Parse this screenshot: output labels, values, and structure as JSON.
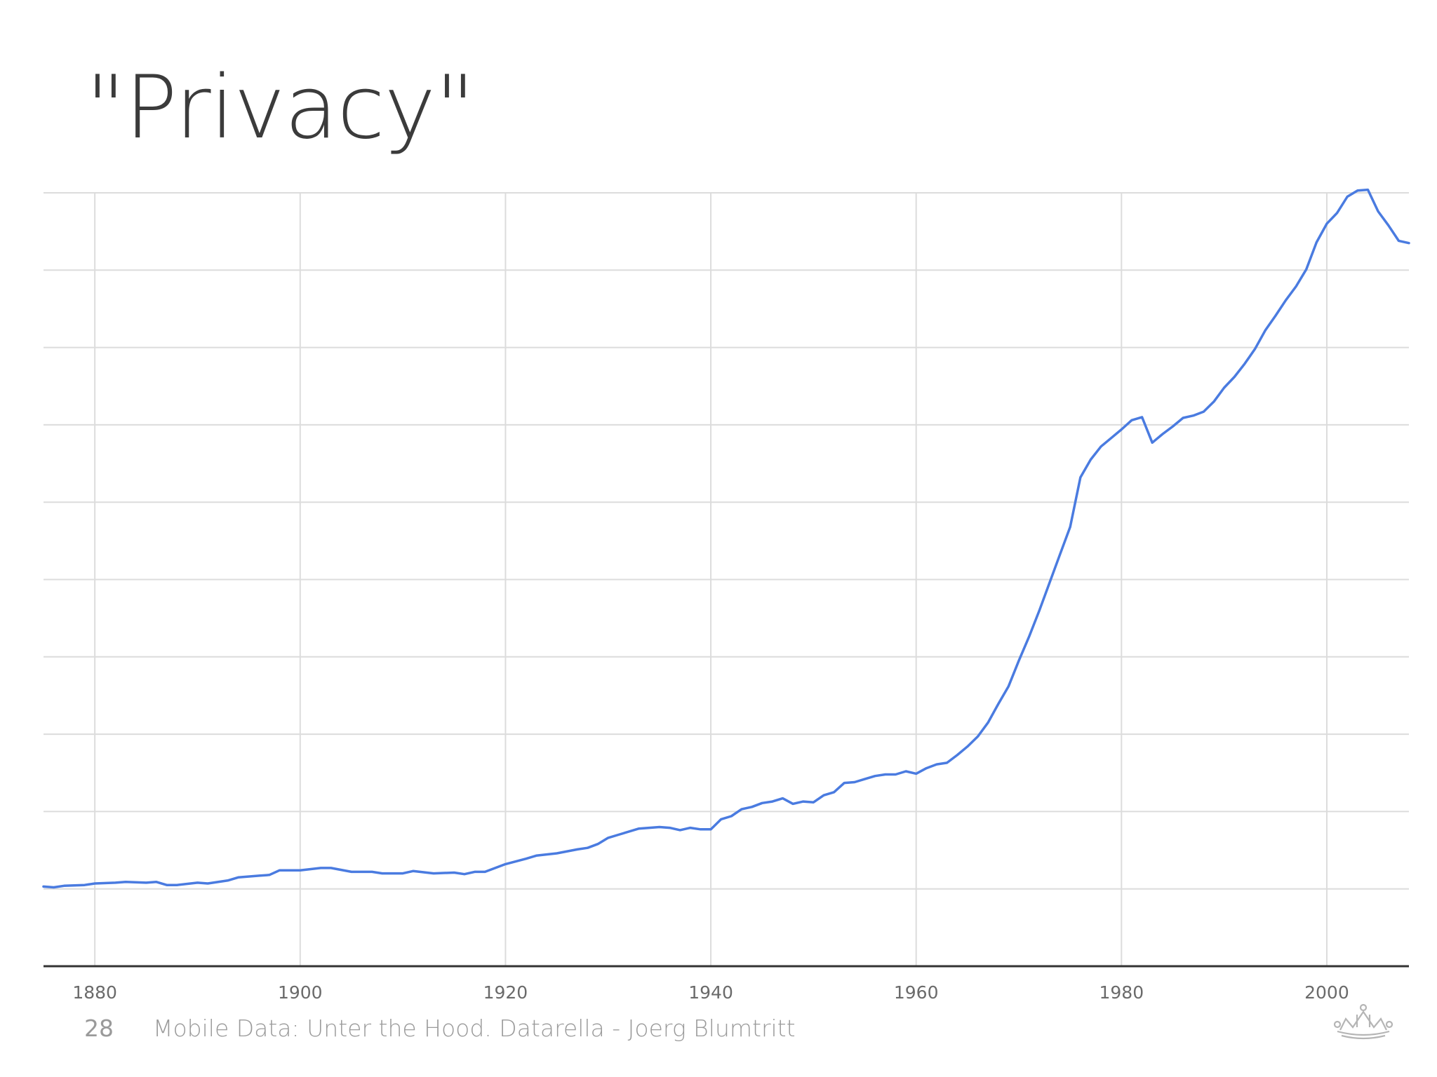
{
  "slide": {
    "title": "\"Privacy\"",
    "page_number": "28",
    "footer_text": "Mobile Data: Unter the Hood. Datarella - Joerg Blumtritt",
    "logo_icon": "crown-logo-icon"
  },
  "colors": {
    "line": "#4a7be0",
    "grid": "#dcdcdc",
    "axis": "#333333",
    "title": "#3b3b3b",
    "footer": "#9a9a9a"
  },
  "chart_data": {
    "type": "line",
    "title": "",
    "xlabel": "",
    "ylabel": "",
    "xlim": [
      1875,
      2008
    ],
    "ylim": [
      0,
      10
    ],
    "x_ticks": [
      1880,
      1900,
      1920,
      1940,
      1960,
      1980,
      2000
    ],
    "y_gridlines": 10,
    "y_tick_labels_shown": false,
    "grid": true,
    "legend": "none",
    "series": [
      {
        "x": [
          1875,
          1876,
          1877,
          1879,
          1880,
          1882,
          1883,
          1885,
          1886,
          1887,
          1888,
          1890,
          1891,
          1893,
          1894,
          1896,
          1897,
          1898,
          1900,
          1902,
          1903,
          1905,
          1907,
          1908,
          1910,
          1911,
          1913,
          1915,
          1916,
          1917,
          1918,
          1920,
          1922,
          1923,
          1925,
          1927,
          1928,
          1929,
          1930,
          1931,
          1933,
          1935,
          1936,
          1937,
          1938,
          1939,
          1940,
          1941,
          1942,
          1943,
          1944,
          1945,
          1946,
          1947,
          1948,
          1949,
          1950,
          1951,
          1952,
          1953,
          1954,
          1955,
          1956,
          1957,
          1958,
          1959,
          1960,
          1961,
          1962,
          1963,
          1964,
          1965,
          1966,
          1967,
          1968,
          1969,
          1970,
          1971,
          1972,
          1973,
          1974,
          1975,
          1976,
          1977,
          1978,
          1979,
          1980,
          1981,
          1982,
          1983,
          1984,
          1985,
          1986,
          1987,
          1988,
          1989,
          1990,
          1991,
          1992,
          1993,
          1994,
          1995,
          1996,
          1997,
          1998,
          1999,
          2000,
          2001,
          2002,
          2003,
          2004,
          2005,
          2006,
          2007,
          2008
        ],
        "y": [
          1.03,
          1.02,
          1.04,
          1.05,
          1.07,
          1.08,
          1.09,
          1.08,
          1.09,
          1.05,
          1.05,
          1.08,
          1.07,
          1.11,
          1.15,
          1.17,
          1.18,
          1.24,
          1.24,
          1.27,
          1.27,
          1.22,
          1.22,
          1.2,
          1.2,
          1.23,
          1.2,
          1.21,
          1.19,
          1.22,
          1.22,
          1.32,
          1.39,
          1.43,
          1.46,
          1.51,
          1.53,
          1.58,
          1.66,
          1.7,
          1.78,
          1.8,
          1.79,
          1.76,
          1.79,
          1.77,
          1.77,
          1.9,
          1.94,
          2.03,
          2.06,
          2.11,
          2.13,
          2.17,
          2.1,
          2.13,
          2.12,
          2.21,
          2.25,
          2.37,
          2.38,
          2.42,
          2.46,
          2.48,
          2.48,
          2.52,
          2.49,
          2.56,
          2.61,
          2.63,
          2.73,
          2.84,
          2.97,
          3.15,
          3.39,
          3.62,
          3.95,
          4.26,
          4.6,
          4.96,
          5.32,
          5.68,
          6.32,
          6.55,
          6.72,
          6.83,
          6.94,
          7.06,
          7.1,
          6.77,
          6.88,
          6.98,
          7.09,
          7.12,
          7.17,
          7.3,
          7.48,
          7.62,
          7.79,
          7.98,
          8.22,
          8.41,
          8.61,
          8.79,
          9.01,
          9.36,
          9.6,
          9.74,
          9.95,
          10.03,
          10.04,
          9.76,
          9.58,
          9.38,
          9.35
        ]
      }
    ]
  }
}
